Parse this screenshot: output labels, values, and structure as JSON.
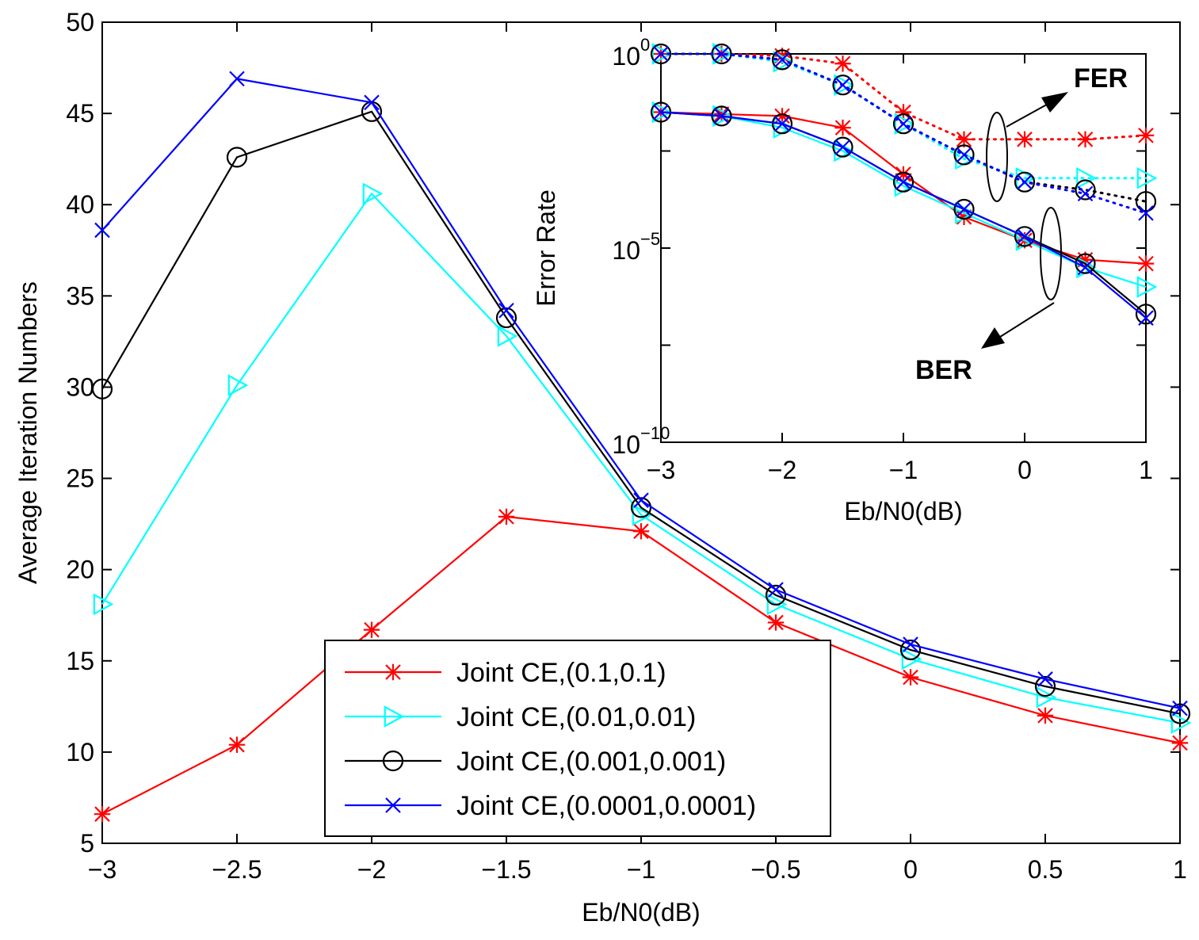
{
  "chart_data": [
    {
      "type": "line",
      "xlabel": "Eb/N0(dB)",
      "ylabel": "Average Iteration Numbers",
      "xlim": [
        -3,
        1
      ],
      "ylim": [
        5,
        50
      ],
      "x_ticks": [
        -3,
        -2.5,
        -2,
        -1.5,
        -1,
        -0.5,
        0,
        0.5,
        1
      ],
      "x_tick_labels": [
        "−3",
        "−2.5",
        "−2",
        "−1.5",
        "−1",
        "−0.5",
        "0",
        "0.5",
        "1"
      ],
      "y_ticks": [
        5,
        10,
        15,
        20,
        25,
        30,
        35,
        40,
        45,
        50
      ],
      "y_tick_labels": [
        "5",
        "10",
        "15",
        "20",
        "25",
        "30",
        "35",
        "40",
        "45",
        "50"
      ],
      "grid": false,
      "legend_position": "bottom-center",
      "x": [
        -3,
        -2.5,
        -2,
        -1.5,
        -1,
        -0.5,
        0,
        0.5,
        1
      ],
      "series": [
        {
          "name": "Joint CE,(0.1,0.1)",
          "color": "#ff0000",
          "marker": "asterisk",
          "values": [
            6.6,
            10.4,
            16.7,
            22.9,
            22.1,
            17.1,
            14.1,
            12.0,
            10.5
          ]
        },
        {
          "name": "Joint CE,(0.01,0.01)",
          "color": "#00ffff",
          "marker": "triangle-right",
          "values": [
            18.1,
            30.1,
            40.6,
            32.8,
            23.0,
            18.1,
            15.1,
            13.0,
            11.6
          ]
        },
        {
          "name": "Joint CE,(0.001,0.001)",
          "color": "#000000",
          "marker": "circle",
          "values": [
            29.9,
            42.6,
            45.1,
            33.8,
            23.4,
            18.6,
            15.6,
            13.6,
            12.1
          ]
        },
        {
          "name": "Joint CE,(0.0001,0.0001)",
          "color": "#0000ff",
          "marker": "x",
          "values": [
            38.6,
            46.9,
            45.6,
            34.2,
            23.8,
            18.9,
            15.9,
            14.0,
            12.4
          ]
        }
      ]
    },
    {
      "type": "line",
      "scale_y": "log",
      "xlabel": "Eb/N0(dB)",
      "ylabel": "Error Rate",
      "xlim": [
        -3,
        1
      ],
      "ylim_log10": [
        -10,
        0
      ],
      "x_ticks": [
        -3,
        -2,
        -1,
        0,
        1
      ],
      "x_tick_labels": [
        "−3",
        "−2",
        "−1",
        "0",
        "1"
      ],
      "y_labeled_ticks_log10": [
        0,
        -5,
        -10
      ],
      "y_tick_base": "10",
      "y_tick_exponents": [
        "0",
        "−5",
        "−10"
      ],
      "grid": false,
      "x": [
        -3,
        -2.5,
        -2,
        -1.5,
        -1,
        -0.5,
        0,
        0.5,
        1
      ],
      "annotations": [
        "FER",
        "BER"
      ],
      "series": [
        {
          "metric": "FER",
          "color": "#ff0000",
          "marker": "asterisk",
          "style": "dotted",
          "log10_values": [
            0,
            0,
            -0.05,
            -0.25,
            -1.5,
            -2.2,
            -2.2,
            -2.2,
            -2.1
          ]
        },
        {
          "metric": "FER",
          "color": "#00ffff",
          "marker": "triangle-right",
          "style": "dotted",
          "log10_values": [
            0,
            0,
            -0.2,
            -0.8,
            -1.8,
            -2.7,
            -3.2,
            -3.2,
            -3.2
          ]
        },
        {
          "metric": "FER",
          "color": "#000000",
          "marker": "circle",
          "style": "dotted",
          "log10_values": [
            0,
            0,
            -0.15,
            -0.8,
            -1.8,
            -2.6,
            -3.3,
            -3.5,
            -3.8
          ]
        },
        {
          "metric": "FER",
          "color": "#0000ff",
          "marker": "x",
          "style": "dotted",
          "log10_values": [
            0,
            0,
            -0.15,
            -0.8,
            -1.8,
            -2.6,
            -3.3,
            -3.6,
            -4.1
          ]
        },
        {
          "metric": "BER",
          "color": "#ff0000",
          "marker": "asterisk",
          "style": "solid",
          "log10_values": [
            -1.5,
            -1.55,
            -1.6,
            -1.9,
            -3.1,
            -4.2,
            -4.8,
            -5.3,
            -5.4
          ]
        },
        {
          "metric": "BER",
          "color": "#00ffff",
          "marker": "triangle-right",
          "style": "solid",
          "log10_values": [
            -1.5,
            -1.6,
            -1.9,
            -2.5,
            -3.4,
            -4.1,
            -4.8,
            -5.5,
            -6.0
          ]
        },
        {
          "metric": "BER",
          "color": "#000000",
          "marker": "circle",
          "style": "solid",
          "log10_values": [
            -1.5,
            -1.6,
            -1.8,
            -2.4,
            -3.3,
            -4.0,
            -4.7,
            -5.4,
            -6.7
          ]
        },
        {
          "metric": "BER",
          "color": "#0000ff",
          "marker": "x",
          "style": "solid",
          "log10_values": [
            -1.5,
            -1.6,
            -1.8,
            -2.4,
            -3.3,
            -4.0,
            -4.7,
            -5.5,
            -6.8
          ]
        }
      ]
    }
  ]
}
